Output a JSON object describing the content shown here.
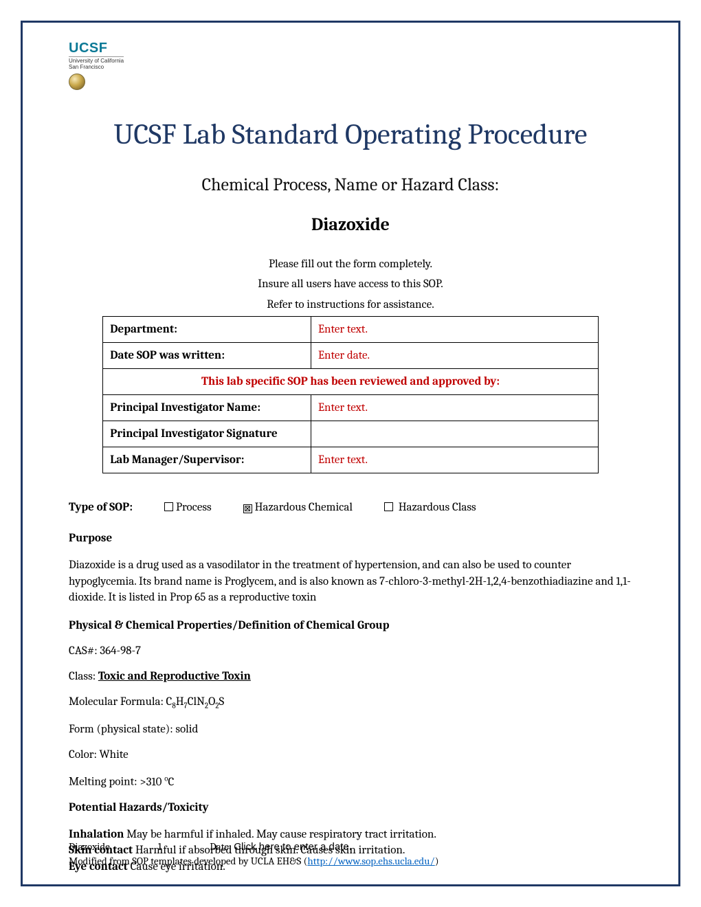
{
  "colors": {
    "border": "#1f3864",
    "title": "#1f3864",
    "placeholder": "#c00000",
    "link": "#0563c1",
    "logo": "#0b7996"
  },
  "logo": {
    "text": "UCSF",
    "sub_line1": "University of California",
    "sub_line2": "San Francisco"
  },
  "title": "UCSF Lab Standard Operating Procedure",
  "subtitle": "Chemical Process, Name or Hazard Class:",
  "chemical_name": "Diazoxide",
  "instructions": [
    "Please fill out the form completely.",
    "Insure all users have access to this SOP.",
    "Refer to instructions for assistance."
  ],
  "table": {
    "rows": [
      {
        "label": "Department:",
        "value": "Enter text."
      },
      {
        "label": "Date SOP was written:",
        "value": "Enter date."
      }
    ],
    "review_text": "This lab specific SOP has been reviewed and approved by:",
    "rows2": [
      {
        "label": "Principal Investigator Name:",
        "value": "Enter text."
      },
      {
        "label": "Principal Investigator Signature",
        "value": ""
      },
      {
        "label": "Lab Manager/Supervisor:",
        "value": "Enter text."
      }
    ]
  },
  "sop_type": {
    "label": "Type of SOP:",
    "options": [
      {
        "label": "Process",
        "checked": false
      },
      {
        "label": "Hazardous Chemical",
        "checked": true
      },
      {
        "label": "Hazardous Class",
        "checked": false
      }
    ]
  },
  "purpose": {
    "heading": "Purpose",
    "text": "Diazoxide is a drug used as a vasodilator in the treatment of hypertension, and can also be used to counter hypoglycemia. Its brand name is Proglycem, and is also known as 7-chloro-3-methyl-2H-1,2,4-benzothiadiazine and 1,1- dioxide. It is listed in Prop 65 as a reproductive toxin"
  },
  "properties": {
    "heading": "Physical & Chemical Properties/Definition of Chemical Group",
    "cas_label": "CAS#: ",
    "cas": "364-98-7",
    "class_label": "Class: ",
    "class_value": "Toxic and Reproductive Toxin",
    "formula_label": "Molecular Formula: ",
    "formula_html": "C<sub>8</sub>H<sub>7</sub>ClN<sub>2</sub>O<sub>2</sub>S",
    "form_label": "Form (physical state): ",
    "form": "solid",
    "color_label": "Color: ",
    "color_value": "White",
    "mp_label": "Melting point: ",
    "mp_html": ">310 <sup>o</sup>C"
  },
  "hazards": {
    "heading": "Potential Hazards/Toxicity",
    "items": [
      {
        "route": "Inhalation",
        "text": " May be harmful if inhaled. May cause respiratory tract irritation."
      },
      {
        "route": "Skin contact",
        "text": " Harmful if absorbed through skin. Causes skin irritation."
      },
      {
        "route": "Eye contact",
        "text": " Cause eye irritation."
      }
    ]
  },
  "footer": {
    "name": "Diazoxide",
    "page": "1",
    "date_label": "Date: ",
    "date_placeholder": "Click here to enter a date.",
    "credit_prefix": "Modified from SOP templates developed by UCLA EH&S (",
    "credit_url": "http://www.sop.ehs.ucla.edu/",
    "credit_suffix": ")"
  }
}
